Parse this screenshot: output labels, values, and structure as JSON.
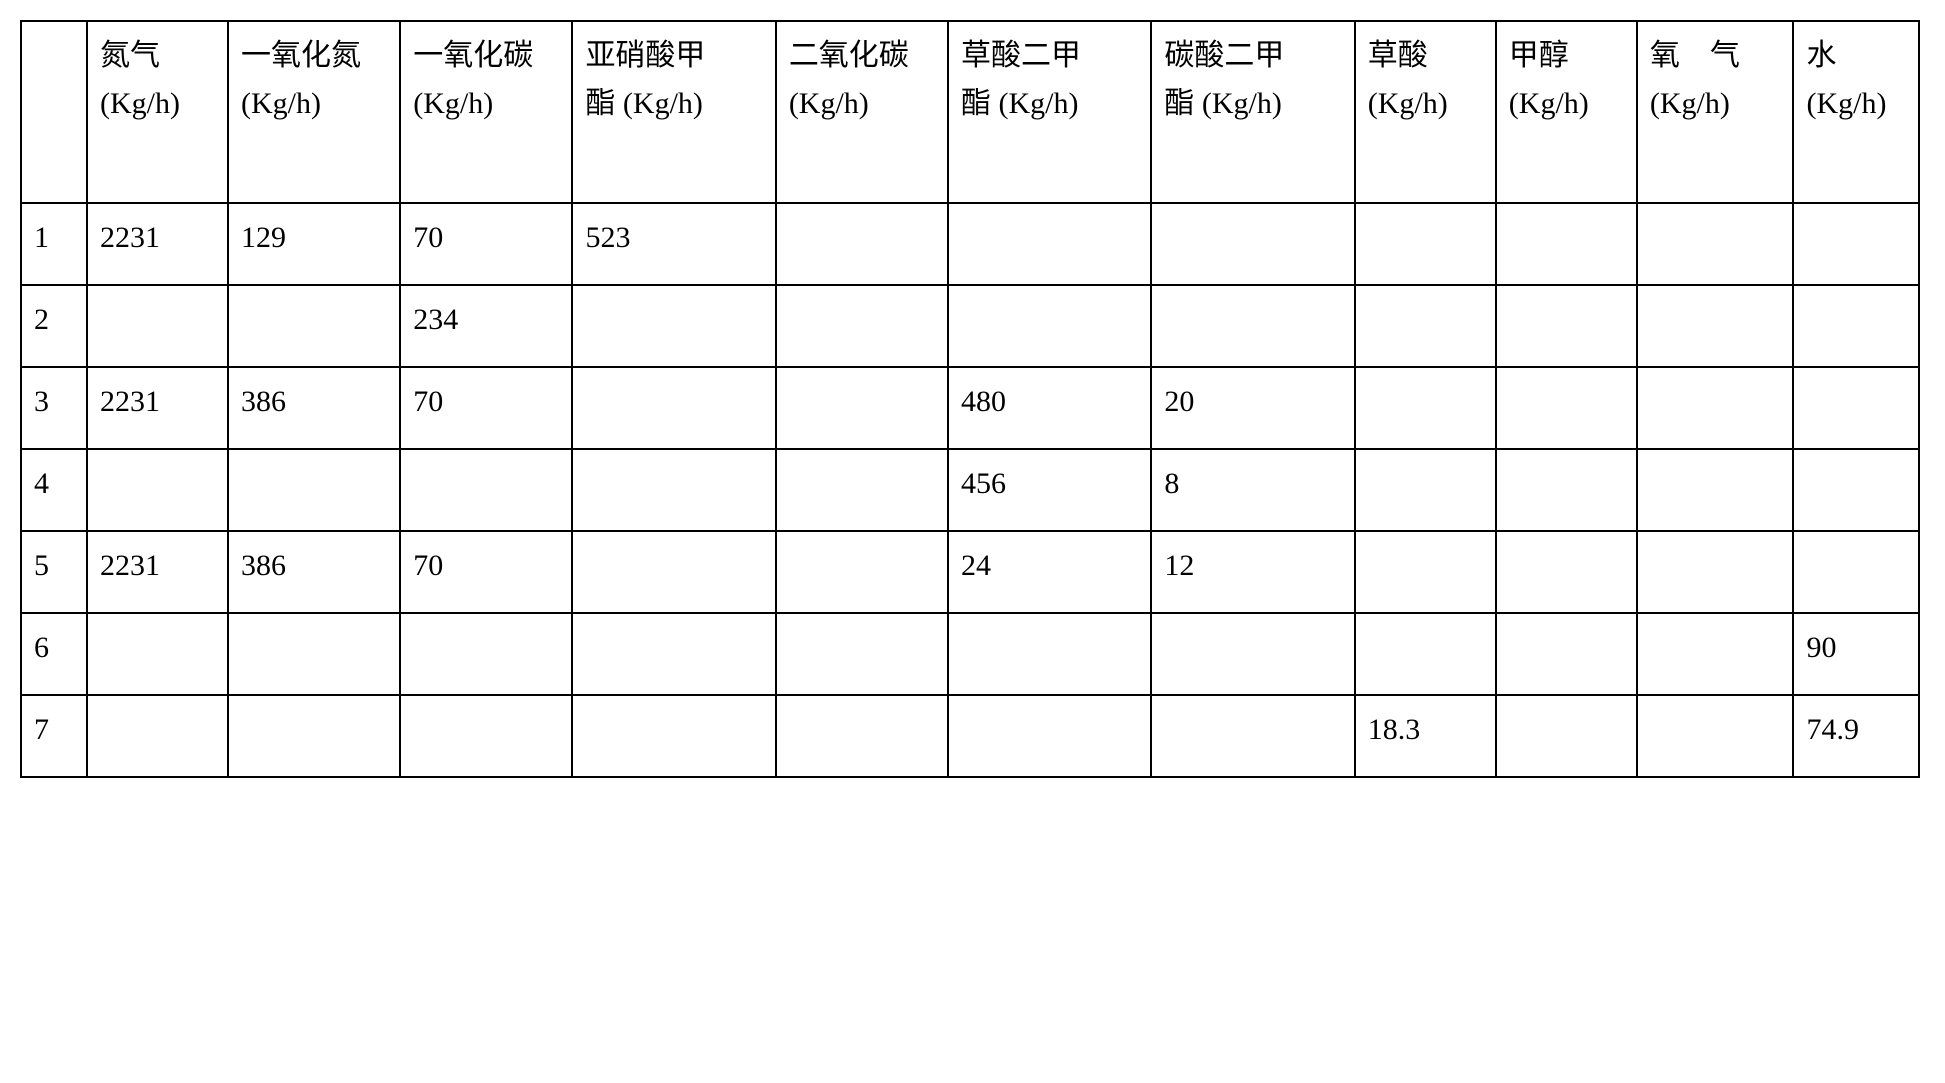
{
  "table": {
    "type": "table",
    "background_color": "#ffffff",
    "border_color": "#000000",
    "border_width": 2,
    "font_family": "SimSun",
    "header_fontsize": 30,
    "cell_fontsize": 30,
    "columns": [
      {
        "label": ""
      },
      {
        "label": "氮气 (Kg/h)"
      },
      {
        "label": "一氧化氮 (Kg/h)"
      },
      {
        "label": "一氧化碳 (Kg/h)"
      },
      {
        "label": "亚硝酸甲　酯 (Kg/h)"
      },
      {
        "label": "二氧化碳 (Kg/h)"
      },
      {
        "label": "草酸二甲　酯 (Kg/h)"
      },
      {
        "label": "碳酸二甲　酯 (Kg/h)"
      },
      {
        "label": "草酸 (Kg/h)"
      },
      {
        "label": "甲醇 (Kg/h)"
      },
      {
        "label": "氧　气 (Kg/h)"
      },
      {
        "label": "水 (Kg/h)"
      }
    ],
    "rows": [
      {
        "num": "1",
        "cells": [
          "2231",
          "129",
          "70",
          "523",
          "",
          "",
          "",
          "",
          "",
          "",
          ""
        ]
      },
      {
        "num": "2",
        "cells": [
          "",
          "",
          "234",
          "",
          "",
          "",
          "",
          "",
          "",
          "",
          ""
        ]
      },
      {
        "num": "3",
        "cells": [
          "2231",
          "386",
          "70",
          "",
          "",
          "480",
          "20",
          "",
          "",
          "",
          ""
        ]
      },
      {
        "num": "4",
        "cells": [
          "",
          "",
          "",
          "",
          "",
          "456",
          "8",
          "",
          "",
          "",
          ""
        ]
      },
      {
        "num": "5",
        "cells": [
          "2231",
          "386",
          "70",
          "",
          "",
          "24",
          "12",
          "",
          "",
          "",
          ""
        ]
      },
      {
        "num": "6",
        "cells": [
          "",
          "",
          "",
          "",
          "",
          "",
          "",
          "",
          "",
          "",
          "90"
        ]
      },
      {
        "num": "7",
        "cells": [
          "",
          "",
          "",
          "",
          "",
          "",
          "",
          "18.3",
          "",
          "",
          "74.9"
        ]
      }
    ]
  }
}
